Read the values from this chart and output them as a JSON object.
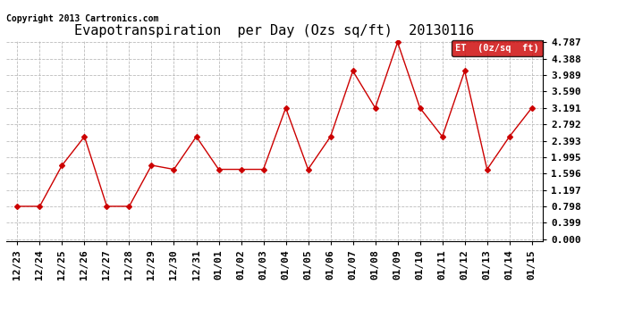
{
  "title": "Evapotranspiration  per Day (Ozs sq/ft)  20130116",
  "copyright": "Copyright 2013 Cartronics.com",
  "legend_label": "ET  (0z/sq  ft)",
  "x_labels": [
    "12/23",
    "12/24",
    "12/25",
    "12/26",
    "12/27",
    "12/28",
    "12/29",
    "12/30",
    "12/31",
    "01/01",
    "01/02",
    "01/03",
    "01/04",
    "01/05",
    "01/06",
    "01/07",
    "01/08",
    "01/09",
    "01/10",
    "01/11",
    "01/12",
    "01/13",
    "01/14",
    "01/15"
  ],
  "y_values": [
    0.798,
    0.798,
    1.797,
    2.493,
    0.798,
    0.798,
    1.797,
    1.697,
    2.493,
    1.697,
    1.697,
    1.697,
    3.191,
    1.697,
    2.493,
    4.089,
    3.191,
    4.787,
    3.191,
    2.493,
    4.089,
    1.697,
    2.493,
    3.191
  ],
  "y_ticks": [
    0.0,
    0.399,
    0.798,
    1.197,
    1.596,
    1.995,
    2.393,
    2.792,
    3.191,
    3.59,
    3.989,
    4.388,
    4.787
  ],
  "line_color": "#cc0000",
  "marker": "D",
  "marker_size": 3,
  "background_color": "#ffffff",
  "grid_color": "#bbbbbb",
  "title_fontsize": 11,
  "tick_fontsize": 8,
  "copyright_fontsize": 7,
  "legend_bg": "#cc0000",
  "legend_text_color": "#ffffff",
  "legend_fontsize": 7.5
}
